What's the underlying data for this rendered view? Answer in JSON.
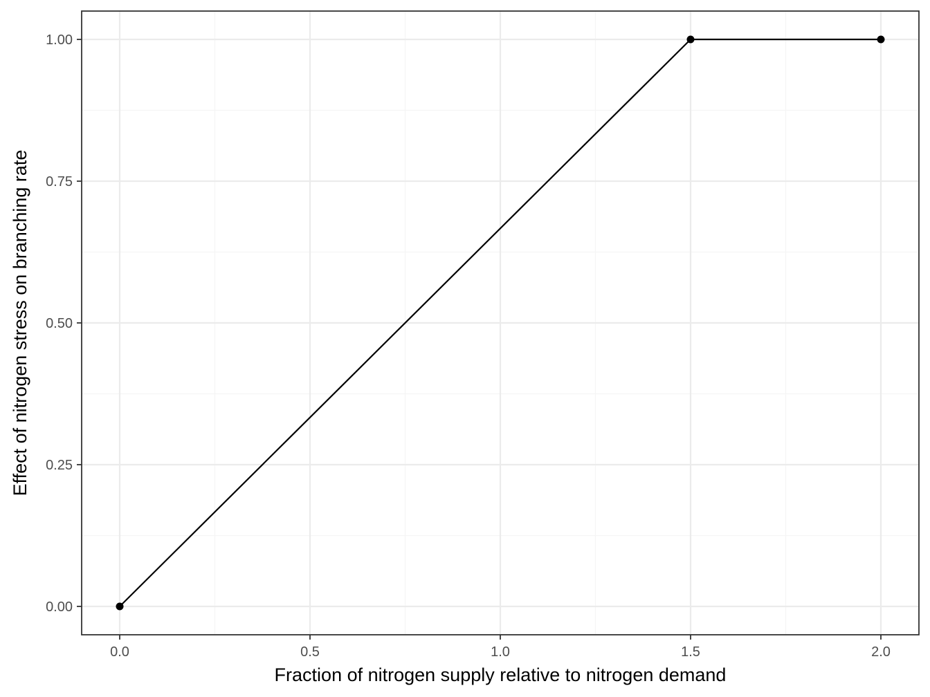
{
  "chart_data": {
    "type": "line",
    "title": "",
    "xlabel": "Fraction of nitrogen supply relative to nitrogen demand",
    "ylabel": "Effect of nitrogen stress on branching rate",
    "xlim": [
      -0.1,
      2.1
    ],
    "ylim": [
      -0.05,
      1.05
    ],
    "x_ticks": [
      0.0,
      0.5,
      1.0,
      1.5,
      2.0
    ],
    "x_tick_labels": [
      "0.0",
      "0.5",
      "1.0",
      "1.5",
      "2.0"
    ],
    "x_minor_ticks": [
      0.25,
      0.75,
      1.25,
      1.75
    ],
    "y_ticks": [
      0.0,
      0.25,
      0.5,
      0.75,
      1.0
    ],
    "y_tick_labels": [
      "0.00",
      "0.25",
      "0.50",
      "0.75",
      "1.00"
    ],
    "y_minor_ticks": [
      0.125,
      0.375,
      0.625,
      0.875
    ],
    "grid": true,
    "legend": "none",
    "series": [
      {
        "x": [
          0.0,
          1.5,
          2.0
        ],
        "y": [
          0.0,
          1.0,
          1.0
        ],
        "markers": true
      }
    ],
    "colors": {
      "line": "#000000",
      "points": "#000000",
      "grid_major": "#ebebeb",
      "grid_minor": "#f5f5f5",
      "panel_border": "#333333",
      "tick_text": "#4d4d4d",
      "axis_title": "#000000"
    }
  }
}
